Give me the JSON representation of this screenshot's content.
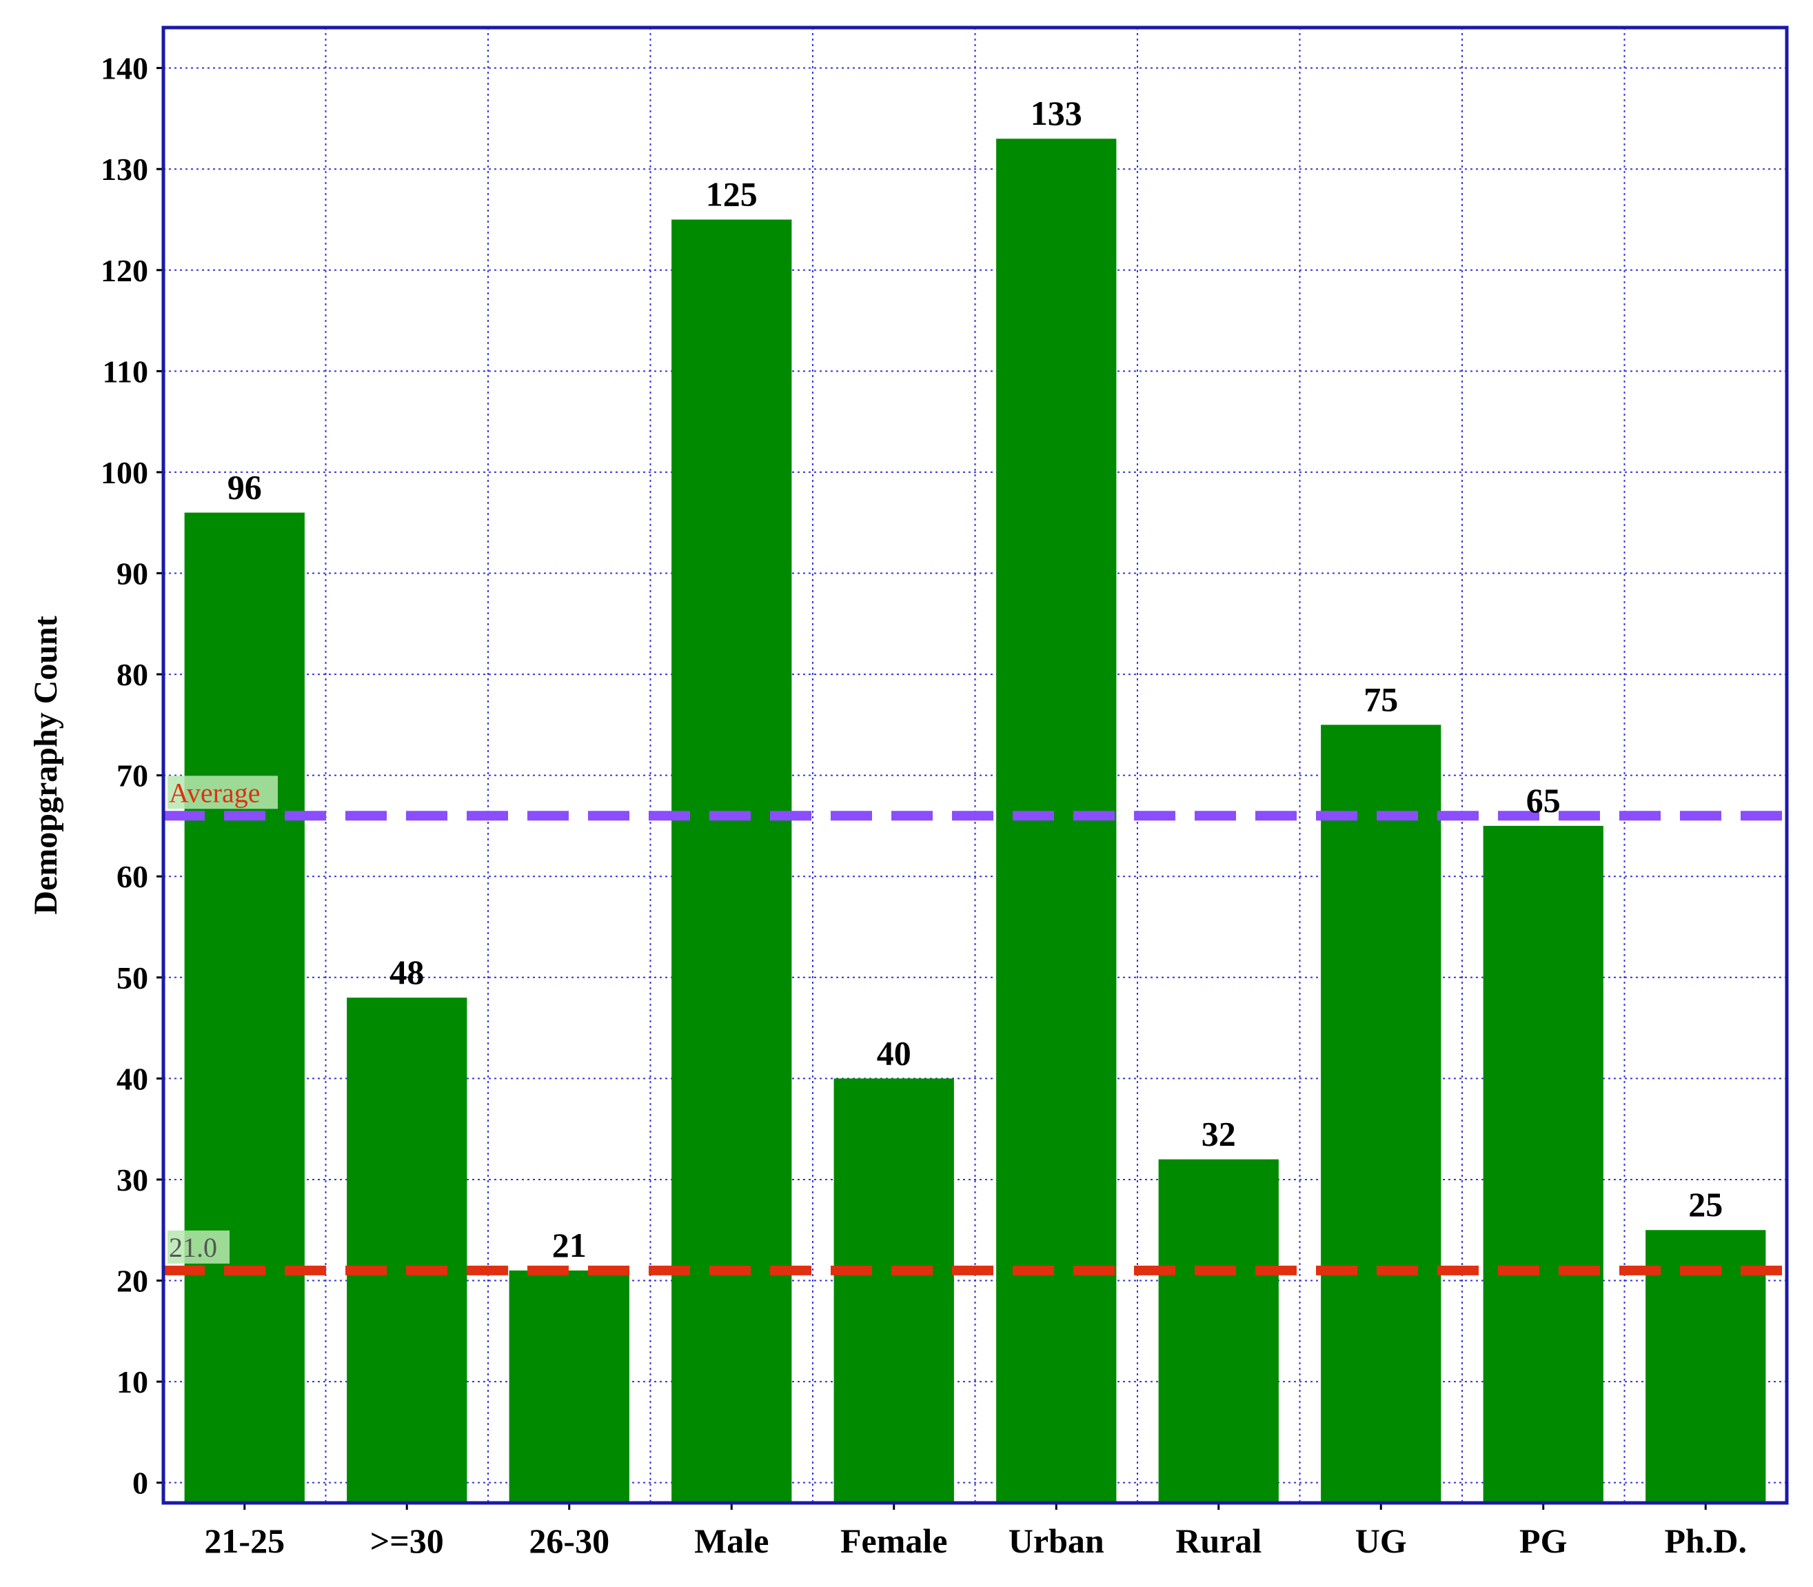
{
  "chart_data": {
    "type": "bar",
    "categories": [
      "21-25",
      ">=30",
      "26-30",
      "Male",
      "Female",
      "Urban",
      "Rural",
      "UG",
      "PG",
      "Ph.D."
    ],
    "values": [
      96,
      48,
      21,
      125,
      40,
      133,
      32,
      75,
      65,
      25
    ],
    "xlabel": "",
    "ylabel": "Demopgraphy Count",
    "ylim": [
      -2,
      144
    ],
    "yticks": [
      0,
      10,
      20,
      30,
      40,
      50,
      60,
      70,
      80,
      90,
      100,
      110,
      120,
      130,
      140
    ],
    "grid": true,
    "data_labels": true,
    "reference_lines": [
      {
        "label": "Average",
        "value": 66,
        "color": "#8a4dff"
      },
      {
        "label": "21.0",
        "value": 21,
        "color": "#e03010"
      }
    ],
    "colors": {
      "bar": "#008a00",
      "frame": "#1a1aa8",
      "grid": "#3333dd",
      "average_line": "#8a4dff",
      "min_line": "#e03010",
      "average_text": "#e03010",
      "min_text": "#555555",
      "ref_label_bg": "#b7e8b0"
    }
  }
}
